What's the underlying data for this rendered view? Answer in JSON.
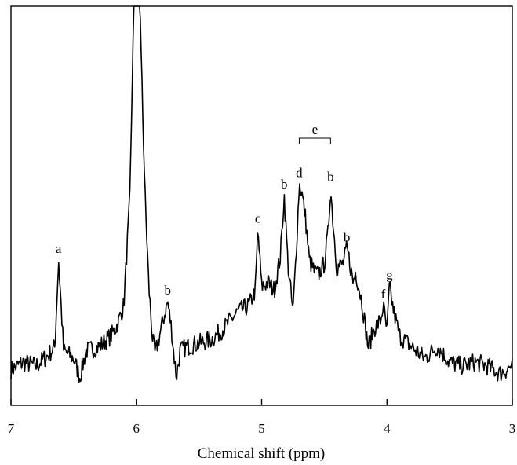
{
  "chart_data": {
    "type": "line",
    "title": "",
    "xlabel": "Chemical shift (ppm)",
    "ylabel": "",
    "xlim": [
      7,
      3
    ],
    "x_reversed": true,
    "x_ticks": [
      7,
      6,
      5,
      4,
      3
    ],
    "x_tick_labels": [
      "7",
      "6",
      "5",
      "4",
      "3"
    ],
    "y_ticks_shown": false,
    "grid": false,
    "legend": "none",
    "series": [
      {
        "color": "#000000",
        "x": [
          7.0,
          6.9,
          6.8,
          6.7,
          6.65,
          6.62,
          6.58,
          6.5,
          6.45,
          6.4,
          6.3,
          6.2,
          6.15,
          6.1,
          6.05,
          6.03,
          6.02,
          5.97,
          5.96,
          5.93,
          5.9,
          5.87,
          5.85,
          5.8,
          5.75,
          5.72,
          5.7,
          5.68,
          5.65,
          5.6,
          5.5,
          5.4,
          5.3,
          5.2,
          5.1,
          5.05,
          5.03,
          5.0,
          4.95,
          4.9,
          4.85,
          4.82,
          4.79,
          4.75,
          4.72,
          4.7,
          4.68,
          4.65,
          4.62,
          4.58,
          4.55,
          4.5,
          4.47,
          4.45,
          4.43,
          4.4,
          4.35,
          4.32,
          4.3,
          4.27,
          4.25,
          4.2,
          4.15,
          4.1,
          4.05,
          4.03,
          4.0,
          3.98,
          3.95,
          3.9,
          3.8,
          3.7,
          3.6,
          3.5,
          3.4,
          3.3,
          3.2,
          3.1,
          3.0
        ],
        "y": [
          0.04,
          0.06,
          0.05,
          0.08,
          0.1,
          0.33,
          0.09,
          0.07,
          0.02,
          0.09,
          0.1,
          0.13,
          0.16,
          0.21,
          0.5,
          0.85,
          1.0,
          1.0,
          0.85,
          0.5,
          0.26,
          0.12,
          0.08,
          0.15,
          0.22,
          0.15,
          0.08,
          0.02,
          0.09,
          0.1,
          0.11,
          0.12,
          0.15,
          0.19,
          0.21,
          0.25,
          0.41,
          0.26,
          0.27,
          0.25,
          0.34,
          0.5,
          0.32,
          0.19,
          0.38,
          0.53,
          0.51,
          0.44,
          0.33,
          0.3,
          0.29,
          0.32,
          0.4,
          0.52,
          0.43,
          0.31,
          0.32,
          0.36,
          0.33,
          0.27,
          0.3,
          0.22,
          0.1,
          0.15,
          0.17,
          0.21,
          0.14,
          0.26,
          0.2,
          0.13,
          0.1,
          0.07,
          0.1,
          0.06,
          0.05,
          0.06,
          0.05,
          0.03,
          0.05
        ]
      }
    ],
    "annotations": [
      {
        "text": "a",
        "x": 6.62,
        "y": 0.33
      },
      {
        "text": "b",
        "x": 5.75,
        "y": 0.22
      },
      {
        "text": "c",
        "x": 5.03,
        "y": 0.41
      },
      {
        "text": "b",
        "x": 4.82,
        "y": 0.5
      },
      {
        "text": "d",
        "x": 4.7,
        "y": 0.53
      },
      {
        "text": "b",
        "x": 4.45,
        "y": 0.52
      },
      {
        "text": "b",
        "x": 4.32,
        "y": 0.36
      },
      {
        "text": "f",
        "x": 4.03,
        "y": 0.21
      },
      {
        "text": "g",
        "x": 3.98,
        "y": 0.26
      }
    ],
    "bracket": {
      "text": "e",
      "x_start": 4.7,
      "x_end": 4.45
    }
  }
}
